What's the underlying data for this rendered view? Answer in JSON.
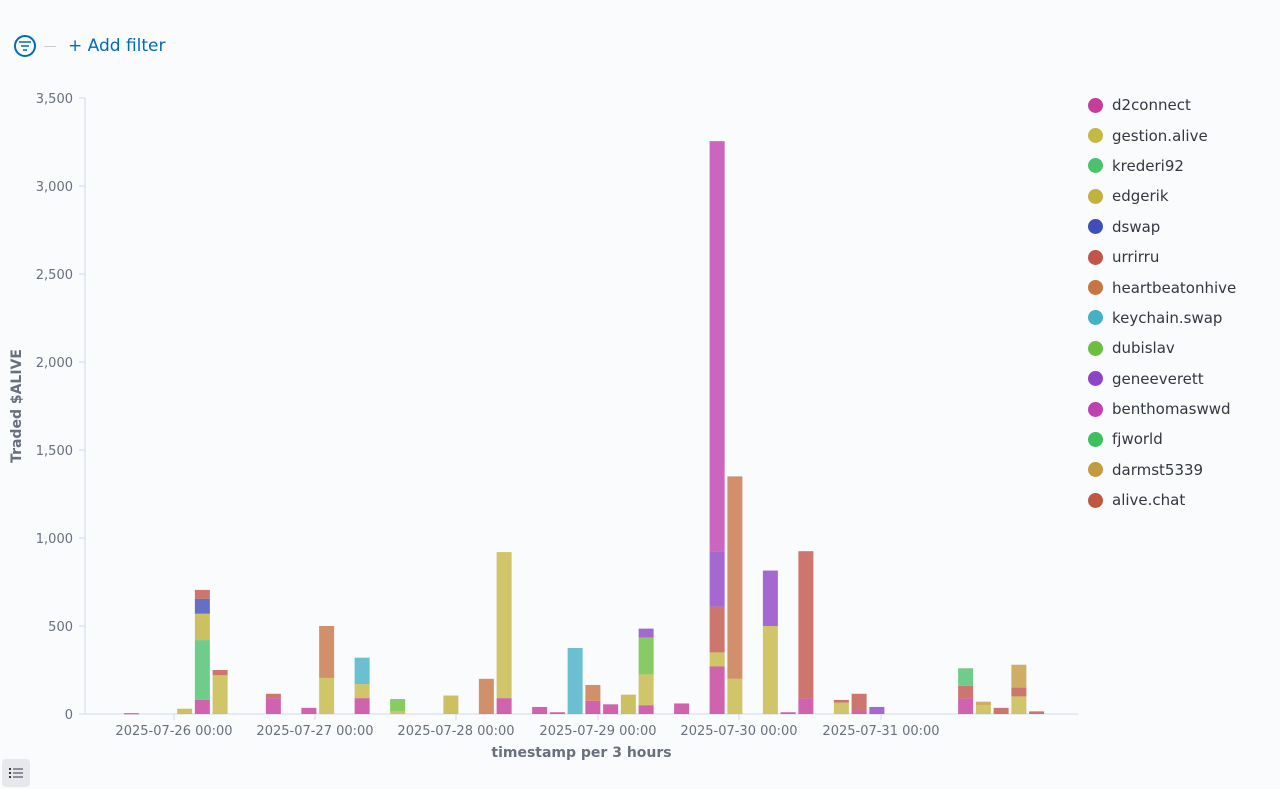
{
  "toolbar": {
    "add_filter_label": "+ Add filter",
    "filter_icon": "filter-icon",
    "list_icon": "list-icon"
  },
  "chart_data": {
    "type": "bar",
    "stacked": true,
    "xlabel": "timestamp per 3 hours",
    "ylabel": "Traded $ALIVE",
    "ylim": [
      0,
      3500
    ],
    "yticks": [
      0,
      500,
      1000,
      1500,
      2000,
      2500,
      3000,
      3500
    ],
    "x_tick_labels": [
      "2025-07-26 00:00",
      "2025-07-27 00:00",
      "2025-07-28 00:00",
      "2025-07-29 00:00",
      "2025-07-30 00:00",
      "2025-07-31 00:00"
    ],
    "legend_position": "right",
    "grid": false,
    "series": [
      {
        "name": "d2connect",
        "color": "#c43d9a"
      },
      {
        "name": "gestion.alive",
        "color": "#c5b843"
      },
      {
        "name": "krederi92",
        "color": "#4cc26e"
      },
      {
        "name": "edgerik",
        "color": "#c2b13c"
      },
      {
        "name": "dswap",
        "color": "#3f4eb8"
      },
      {
        "name": "urrirru",
        "color": "#c2554a"
      },
      {
        "name": "heartbeatonhive",
        "color": "#c87545"
      },
      {
        "name": "keychain.swap",
        "color": "#46b0c4"
      },
      {
        "name": "dubislav",
        "color": "#6cbf3f"
      },
      {
        "name": "geneeverett",
        "color": "#8e44c4"
      },
      {
        "name": "benthomaswwd",
        "color": "#bf40b0"
      },
      {
        "name": "fjworld",
        "color": "#3fbf5e"
      },
      {
        "name": "darmst5339",
        "color": "#c49a3f"
      },
      {
        "name": "alive.chat",
        "color": "#c0583f"
      }
    ],
    "bars": [
      {
        "slot": 2,
        "segments": [
          [
            "d2connect",
            5
          ]
        ]
      },
      {
        "slot": 5,
        "segments": [
          [
            "edgerik",
            30
          ]
        ]
      },
      {
        "slot": 6,
        "segments": [
          [
            "d2connect",
            80
          ],
          [
            "krederi92",
            340
          ],
          [
            "edgerik",
            150
          ],
          [
            "dswap",
            85
          ],
          [
            "urrirru",
            50
          ]
        ]
      },
      {
        "slot": 7,
        "segments": [
          [
            "gestion.alive",
            220
          ],
          [
            "urrirru",
            30
          ]
        ]
      },
      {
        "slot": 10,
        "segments": [
          [
            "d2connect",
            90
          ],
          [
            "urrirru",
            25
          ]
        ]
      },
      {
        "slot": 12,
        "segments": [
          [
            "d2connect",
            35
          ]
        ]
      },
      {
        "slot": 13,
        "segments": [
          [
            "gestion.alive",
            205
          ],
          [
            "heartbeatonhive",
            295
          ]
        ]
      },
      {
        "slot": 15,
        "segments": [
          [
            "d2connect",
            90
          ],
          [
            "gestion.alive",
            80
          ],
          [
            "keychain.swap",
            150
          ]
        ]
      },
      {
        "slot": 17,
        "segments": [
          [
            "gestion.alive",
            15
          ],
          [
            "dubislav",
            70
          ]
        ]
      },
      {
        "slot": 20,
        "segments": [
          [
            "edgerik",
            105
          ]
        ]
      },
      {
        "slot": 22,
        "segments": [
          [
            "heartbeatonhive",
            200
          ]
        ]
      },
      {
        "slot": 23,
        "segments": [
          [
            "d2connect",
            90
          ],
          [
            "gestion.alive",
            830
          ]
        ]
      },
      {
        "slot": 25,
        "segments": [
          [
            "d2connect",
            40
          ]
        ]
      },
      {
        "slot": 26,
        "segments": [
          [
            "d2connect",
            10
          ]
        ]
      },
      {
        "slot": 27,
        "segments": [
          [
            "keychain.swap",
            375
          ]
        ]
      },
      {
        "slot": 28,
        "segments": [
          [
            "d2connect",
            75
          ],
          [
            "heartbeatonhive",
            90
          ]
        ]
      },
      {
        "slot": 29,
        "segments": [
          [
            "d2connect",
            55
          ]
        ]
      },
      {
        "slot": 30,
        "segments": [
          [
            "edgerik",
            110
          ]
        ]
      },
      {
        "slot": 31,
        "segments": [
          [
            "d2connect",
            50
          ],
          [
            "gestion.alive",
            175
          ],
          [
            "dubislav",
            210
          ],
          [
            "geneeverett",
            50
          ]
        ]
      },
      {
        "slot": 33,
        "segments": [
          [
            "d2connect",
            60
          ]
        ]
      },
      {
        "slot": 35,
        "segments": [
          [
            "d2connect",
            270
          ],
          [
            "gestion.alive",
            80
          ],
          [
            "urrirru",
            260
          ],
          [
            "geneeverett",
            315
          ],
          [
            "benthomaswwd",
            2330
          ]
        ]
      },
      {
        "slot": 36,
        "segments": [
          [
            "gestion.alive",
            200
          ],
          [
            "heartbeatonhive",
            1150
          ]
        ]
      },
      {
        "slot": 38,
        "segments": [
          [
            "gestion.alive",
            500
          ],
          [
            "geneeverett",
            315
          ]
        ]
      },
      {
        "slot": 39,
        "segments": [
          [
            "d2connect",
            10
          ]
        ]
      },
      {
        "slot": 40,
        "segments": [
          [
            "d2connect",
            90
          ],
          [
            "urrirru",
            835
          ]
        ]
      },
      {
        "slot": 42,
        "segments": [
          [
            "gestion.alive",
            65
          ],
          [
            "urrirru",
            15
          ]
        ]
      },
      {
        "slot": 43,
        "segments": [
          [
            "d2connect",
            20
          ],
          [
            "urrirru",
            95
          ]
        ]
      },
      {
        "slot": 44,
        "segments": [
          [
            "geneeverett",
            40
          ]
        ]
      },
      {
        "slot": 49,
        "segments": [
          [
            "d2connect",
            90
          ],
          [
            "urrirru",
            70
          ],
          [
            "krederi92",
            100
          ]
        ]
      },
      {
        "slot": 50,
        "segments": [
          [
            "gestion.alive",
            50
          ],
          [
            "darmst5339",
            20
          ]
        ]
      },
      {
        "slot": 51,
        "segments": [
          [
            "urrirru",
            35
          ]
        ]
      },
      {
        "slot": 52,
        "segments": [
          [
            "gestion.alive",
            100
          ],
          [
            "urrirru",
            50
          ],
          [
            "darmst5339",
            130
          ]
        ]
      },
      {
        "slot": 53,
        "segments": [
          [
            "urrirru",
            15
          ]
        ]
      }
    ]
  }
}
